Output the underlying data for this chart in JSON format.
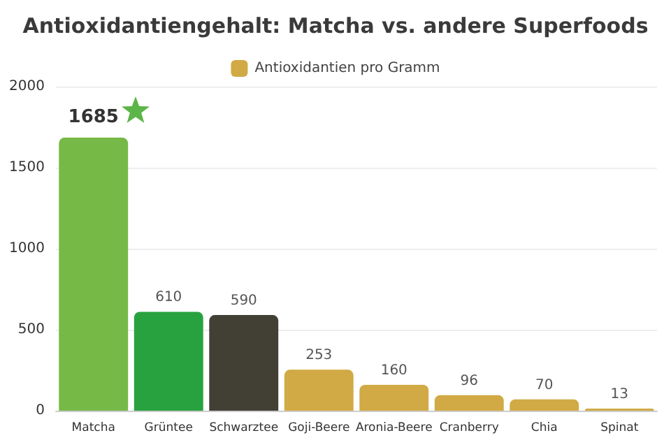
{
  "chart_data": {
    "type": "bar",
    "title": "Antioxidantiengehalt: Matcha vs. andere Superfoods",
    "categories": [
      "Matcha",
      "Grüntee",
      "Schwarztee",
      "Goji-Beere",
      "Aronia-Beere",
      "Cranberry",
      "Chia",
      "Spinat"
    ],
    "series": [
      {
        "name": "Antioxidantien pro Gramm",
        "values": [
          1685,
          610,
          590,
          253,
          160,
          96,
          70,
          13
        ]
      }
    ],
    "colors": [
      "#76b947",
      "#28a23f",
      "#423f35",
      "#d1aa45",
      "#d1aa45",
      "#d1aa45",
      "#d1aa45",
      "#d1aa45"
    ],
    "ylim": [
      0,
      2000
    ],
    "yticks": [
      0,
      500,
      1000,
      1500,
      2000
    ],
    "grid": "y",
    "legend": "top",
    "data_labels": true
  }
}
